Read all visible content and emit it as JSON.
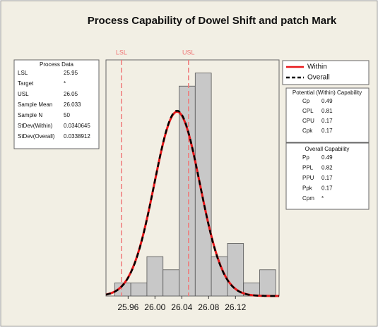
{
  "chart_data": {
    "type": "histogram",
    "title": "Process Capability of Dowel Shift and patch Mark",
    "bins": [
      25.94,
      25.964,
      25.988,
      26.012,
      26.036,
      26.06,
      26.084,
      26.108,
      26.132,
      26.156,
      26.18
    ],
    "counts": [
      1,
      1,
      3,
      2,
      16,
      17,
      3,
      4,
      1,
      2
    ],
    "color": "#c8c8c8",
    "xlim": [
      25.927,
      26.185
    ],
    "xticks": [
      25.96,
      {
        "value": 26.0,
        "label": "26.00"
      },
      26.04,
      26.08,
      26.12
    ],
    "ylim": [
      0,
      18
    ],
    "spec_limits": [
      {
        "label": "LSL",
        "value": 25.95,
        "color": "#f07a7a"
      },
      {
        "label": "USL",
        "value": 26.05,
        "color": "#f07a7a"
      }
    ],
    "series": [
      {
        "name": "Within",
        "color": "#e8191b",
        "mean": 26.033,
        "sd": 0.0340645,
        "dashed": false
      },
      {
        "name": "Overall",
        "color": "#000000",
        "mean": 26.033,
        "sd": 0.0338912,
        "dashed": true
      }
    ],
    "process_data": {
      "title": "Process Data",
      "rows": [
        [
          "LSL",
          25.95
        ],
        [
          "Target",
          "*"
        ],
        [
          "USL",
          26.05
        ],
        [
          "Sample Mean",
          26.033
        ],
        [
          "Sample N",
          50
        ],
        [
          "StDev(Within)",
          0.0340645
        ],
        [
          "StDev(Overall)",
          0.0338912
        ]
      ]
    },
    "potential": {
      "title": "Potential (Within) Capability",
      "rows": [
        [
          "Cp",
          0.49
        ],
        [
          "CPL",
          0.81
        ],
        [
          "CPU",
          0.17
        ],
        [
          "Cpk",
          0.17
        ]
      ]
    },
    "overall": {
      "title": "Overall Capability",
      "rows": [
        [
          "Pp",
          0.49
        ],
        [
          "PPL",
          0.82
        ],
        [
          "PPU",
          0.17
        ],
        [
          "Ppk",
          0.17
        ],
        [
          "Cpm",
          "*"
        ]
      ]
    }
  }
}
